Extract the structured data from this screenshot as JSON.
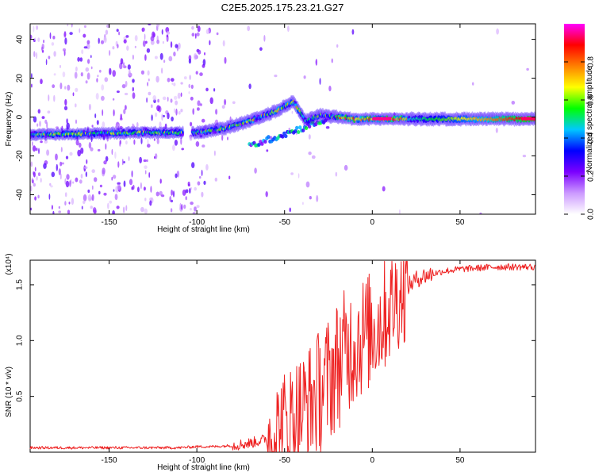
{
  "title": "C2E5.2025.175.23.21.G27",
  "chart_data": [
    {
      "type": "heatmap",
      "xlabel": "Height of straight line (km)",
      "ylabel": "Frequency (Hz)",
      "xlim": [
        -195,
        93
      ],
      "ylim": [
        -50,
        48
      ],
      "xticks": [
        -150,
        -100,
        -50,
        0,
        50
      ],
      "yticks": [
        -40,
        -20,
        0,
        20,
        40
      ],
      "colorbar": {
        "label": "Normalized spectral amplitude",
        "range": [
          0.0,
          1.0
        ],
        "ticks": [
          0.0,
          0.2,
          0.4,
          0.6,
          0.8
        ],
        "tick_labels": [
          "0.0",
          "0.2",
          "0.4",
          "0.6",
          "0.8"
        ],
        "colors": [
          "#ffffff",
          "#cc99ff",
          "#7b00ff",
          "#0000ff",
          "#00c8ff",
          "#00ff00",
          "#ffff00",
          "#ff8000",
          "#ff0000",
          "#ff00ff"
        ]
      },
      "ridge": {
        "x": [
          -190,
          -160,
          -130,
          -110,
          -100,
          -85,
          -70,
          -55,
          -45,
          -38,
          -30,
          -20,
          -10,
          0,
          20,
          50,
          80,
          92
        ],
        "frequency": [
          -9,
          -8.5,
          -8,
          -8,
          -8,
          -6,
          -2,
          3,
          8,
          -2,
          1,
          0,
          -1,
          -1,
          -1,
          -1,
          -1,
          -1
        ]
      }
    },
    {
      "type": "line",
      "xlabel": "Height of straight line (km)",
      "ylabel": "SNR (10 * v/v)",
      "scale_label": "(x10⁴)",
      "xlim": [
        -195,
        93
      ],
      "ylim": [
        0,
        1.72
      ],
      "xticks": [
        -150,
        -100,
        -50,
        0,
        50
      ],
      "yticks": [
        0.5,
        1.0,
        1.5
      ],
      "ytick_labels": [
        "0.5",
        "1.0",
        "1.5"
      ],
      "color": "#ee2222",
      "series": [
        {
          "x": [
            -195,
            -170,
            -150,
            -130,
            -110,
            -100,
            -90,
            -80,
            -70,
            -60,
            -55,
            -50,
            -45,
            -40,
            -35,
            -30,
            -25,
            -20,
            -15,
            -10,
            -5,
            0,
            5,
            10,
            15,
            20,
            25,
            30,
            40,
            50,
            60,
            70,
            80,
            93
          ],
          "values": [
            0.04,
            0.04,
            0.04,
            0.04,
            0.04,
            0.05,
            0.05,
            0.06,
            0.08,
            0.12,
            0.18,
            0.25,
            0.32,
            0.38,
            0.45,
            0.55,
            0.65,
            0.78,
            0.9,
            0.98,
            1.05,
            1.1,
            1.18,
            1.3,
            1.4,
            1.48,
            1.55,
            1.58,
            1.62,
            1.64,
            1.65,
            1.66,
            1.66,
            1.66
          ]
        }
      ]
    }
  ]
}
